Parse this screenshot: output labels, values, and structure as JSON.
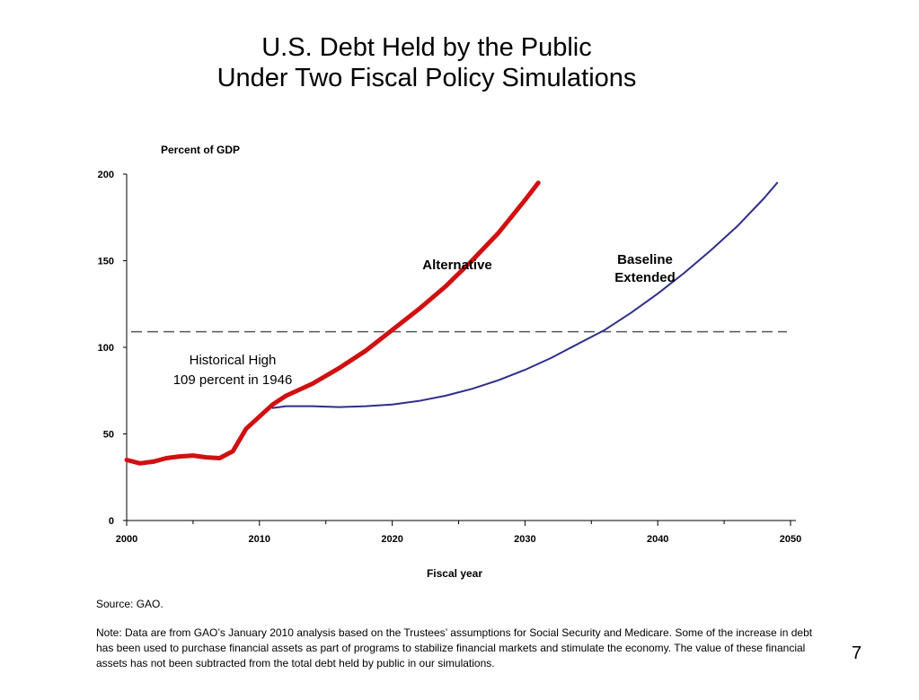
{
  "slide": {
    "title_line1": "U.S. Debt Held by the Public",
    "title_line2": "Under Two Fiscal Policy Simulations",
    "source": "Source: GAO.",
    "note": "Note:  Data are from GAO’s January 2010 analysis based on the Trustees’ assumptions for Social Security and Medicare. Some of the increase in debt has been used to purchase financial assets as part of programs to stabilize financial markets and stimulate the economy. The value of these financial assets has not been subtracted from the total debt held by public in our simulations.",
    "page_number": "7"
  },
  "chart_data": {
    "type": "line",
    "ylabel": "Percent of GDP",
    "xlabel": "Fiscal year",
    "xlim": [
      2000,
      2050
    ],
    "ylim": [
      0,
      200
    ],
    "x_ticks": [
      "2000",
      "2010",
      "2020",
      "2030",
      "2040",
      "2050"
    ],
    "y_ticks": [
      "0",
      "50",
      "100",
      "150",
      "200"
    ],
    "reference_line": {
      "value": 109,
      "style": "dashed",
      "label_line1": "Historical High",
      "label_line2": "109 percent in 1946"
    },
    "series": [
      {
        "name": "Alternative",
        "color": "#d01010",
        "x": [
          2000,
          2001,
          2002,
          2003,
          2004,
          2005,
          2006,
          2007,
          2008,
          2009,
          2010,
          2011,
          2012,
          2014,
          2016,
          2018,
          2020,
          2022,
          2024,
          2026,
          2028,
          2030,
          2031
        ],
        "y": [
          35,
          33,
          34,
          36,
          37,
          37.5,
          36.5,
          36,
          40,
          53,
          60,
          67,
          72,
          79,
          88,
          98,
          110,
          122,
          135,
          150,
          166,
          185,
          195
        ]
      },
      {
        "name": "Baseline Extended",
        "color": "#2e2e8a",
        "x": [
          2011,
          2012,
          2014,
          2016,
          2018,
          2020,
          2022,
          2024,
          2026,
          2028,
          2030,
          2032,
          2034,
          2036,
          2038,
          2040,
          2042,
          2044,
          2046,
          2048,
          2049
        ],
        "y": [
          65,
          66,
          66,
          65.5,
          66,
          67,
          69,
          72,
          76,
          81,
          87,
          94,
          102,
          110,
          120,
          131,
          143,
          156,
          170,
          186,
          195
        ]
      }
    ],
    "series_labels": [
      {
        "series": "Alternative",
        "text": "Alternative"
      },
      {
        "series": "Baseline Extended",
        "line1": "Baseline",
        "line2": "Extended"
      }
    ]
  }
}
